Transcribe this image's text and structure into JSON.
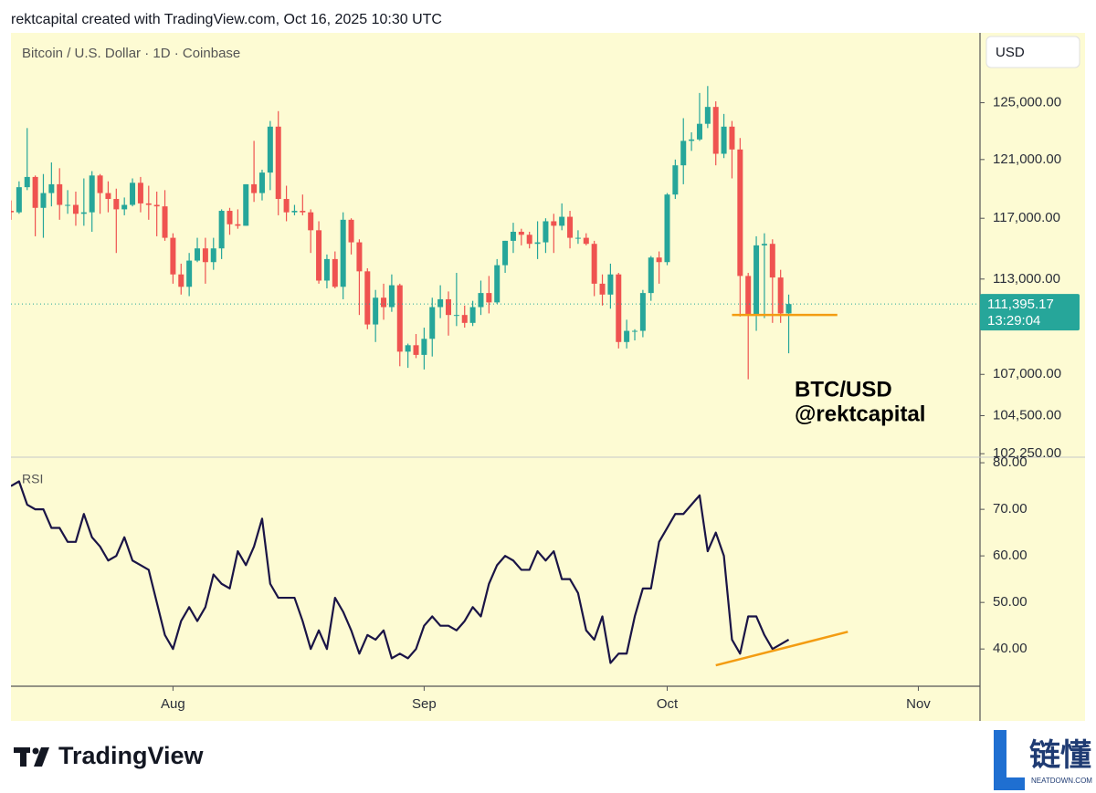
{
  "header": {
    "caption": "rektcapital created with TradingView.com, Oct 16, 2025 10:30 UTC"
  },
  "footer": {
    "logo": "TradingView",
    "watermark": "链懂",
    "watermark_sub": "NEATDOWN.COM"
  },
  "chart_data": [
    {
      "type": "candlestick",
      "title": "Bitcoin / U.S. Dollar · 1D · Coinbase",
      "currency": "USD",
      "x": [
        0,
        1,
        2,
        3,
        4,
        5,
        6,
        7,
        8,
        9,
        10,
        11,
        12,
        13,
        14,
        15,
        16,
        17,
        18,
        19,
        20,
        21,
        22,
        23,
        24,
        25,
        26,
        27,
        28,
        29,
        30,
        31,
        32,
        33,
        34,
        35,
        36,
        37,
        38,
        39,
        40,
        41,
        42,
        43,
        44,
        45,
        46,
        47,
        48,
        49,
        50,
        51,
        52,
        53,
        54,
        55,
        56,
        57,
        58,
        59,
        60,
        61,
        62,
        63,
        64,
        65,
        66,
        67,
        68,
        69,
        70,
        71,
        72,
        73,
        74,
        75,
        76,
        77,
        78,
        79,
        80,
        81,
        82,
        83,
        84,
        85,
        86,
        87,
        88,
        89,
        90,
        91,
        92,
        93,
        94,
        95,
        96
      ],
      "open": [
        117500,
        117400,
        119100,
        119800,
        117700,
        118700,
        119300,
        117900,
        117900,
        117300,
        117400,
        119900,
        118700,
        118300,
        117600,
        117900,
        119400,
        118000,
        117900,
        117800,
        115700,
        113300,
        112500,
        114200,
        115000,
        114100,
        115000,
        117500,
        116600,
        116500,
        119300,
        118700,
        120100,
        123300,
        118300,
        117400,
        117500,
        117400,
        116200,
        112900,
        114300,
        112500,
        116900,
        115400,
        113500,
        110100,
        111800,
        111200,
        112600,
        108400,
        108800,
        108200,
        109200,
        111200,
        111700,
        110700,
        110700,
        110200,
        111200,
        112100,
        111500,
        113900,
        115500,
        116100,
        115900,
        115300,
        115400,
        116800,
        116500,
        117100,
        115700,
        115700,
        115300,
        112700,
        112000,
        113300,
        109000,
        109700,
        109700,
        112100,
        114400,
        114100,
        118600,
        120600,
        122300,
        122400,
        123500,
        124700,
        121400,
        123300,
        121700,
        113200,
        110700,
        115200,
        115300,
        113100,
        110800
      ],
      "high": [
        118200,
        119500,
        123200,
        119900,
        120000,
        120800,
        120400,
        118900,
        118800,
        119700,
        120200,
        120000,
        119500,
        119000,
        118400,
        119700,
        119800,
        119200,
        118800,
        118900,
        116000,
        114000,
        114700,
        115700,
        115700,
        115700,
        117600,
        117700,
        117600,
        119300,
        122300,
        120300,
        123700,
        124400,
        119200,
        117900,
        118600,
        117600,
        116800,
        114600,
        114800,
        117400,
        117000,
        115600,
        113700,
        112300,
        112700,
        113300,
        112700,
        108900,
        109500,
        109900,
        111800,
        112600,
        112200,
        113400,
        111300,
        111600,
        112900,
        113200,
        114300,
        115500,
        116700,
        116300,
        116100,
        116800,
        117000,
        117300,
        118000,
        117500,
        116200,
        116000,
        115500,
        113300,
        114000,
        113400,
        110400,
        109800,
        112300,
        114500,
        114800,
        118700,
        121000,
        123900,
        122900,
        125700,
        126200,
        125100,
        124200,
        123700,
        122500,
        113400,
        115800,
        116000,
        115600,
        113600,
        112000
      ],
      "low": [
        116900,
        117300,
        118900,
        115800,
        115700,
        117800,
        116900,
        117300,
        116500,
        116500,
        116100,
        117300,
        117400,
        114700,
        117200,
        117800,
        117400,
        116900,
        115800,
        115500,
        112700,
        112000,
        111900,
        114100,
        112700,
        113600,
        114300,
        115900,
        116300,
        116500,
        118100,
        118200,
        118900,
        117200,
        116800,
        117200,
        117200,
        114700,
        112700,
        112400,
        112400,
        111700,
        114600,
        110700,
        109800,
        109000,
        110400,
        110900,
        107500,
        107400,
        108000,
        107300,
        108100,
        110500,
        109400,
        110000,
        109900,
        110000,
        110700,
        110800,
        111400,
        113400,
        114700,
        115200,
        115000,
        114300,
        114700,
        114700,
        116200,
        115000,
        115300,
        115200,
        111900,
        111300,
        111100,
        108600,
        108600,
        109100,
        109300,
        111600,
        112700,
        113900,
        118300,
        119300,
        121600,
        122300,
        123200,
        120600,
        121100,
        119700,
        110600,
        106700,
        109700,
        110500,
        110200,
        110200,
        108300
      ],
      "close": [
        117400,
        119100,
        119800,
        117700,
        118700,
        119300,
        117900,
        117900,
        117300,
        117400,
        119900,
        118700,
        118300,
        117600,
        117900,
        119400,
        118000,
        117900,
        117800,
        115700,
        113300,
        112500,
        114200,
        115000,
        114100,
        115000,
        117500,
        116600,
        116500,
        119300,
        118700,
        120100,
        123300,
        118300,
        117400,
        117500,
        117400,
        116200,
        112900,
        114300,
        112500,
        116900,
        115400,
        113500,
        110100,
        111800,
        111200,
        112600,
        108400,
        108800,
        108200,
        109200,
        111200,
        111700,
        110700,
        110700,
        110200,
        111200,
        112100,
        111500,
        113900,
        115500,
        116100,
        115900,
        115300,
        115400,
        116800,
        116500,
        117100,
        115700,
        115700,
        115300,
        112700,
        112000,
        113300,
        109000,
        109700,
        109700,
        112100,
        114400,
        114100,
        118600,
        120600,
        122300,
        122400,
        123500,
        124700,
        121400,
        123300,
        121700,
        113200,
        110700,
        115200,
        115300,
        113100,
        110800,
        111395.17
      ],
      "up_color": "#26a69a",
      "down_color": "#ef5350",
      "xlim": [
        0,
        119.5
      ],
      "ylim": [
        102100,
        130100
      ],
      "log_scale": true,
      "grid": false,
      "yticks": [
        {
          "value": 102250,
          "label": "102,250.00"
        },
        {
          "value": 104500,
          "label": "104,500.00"
        },
        {
          "value": 107000,
          "label": "107,000.00"
        },
        {
          "value": 113000,
          "label": "113,000.00"
        },
        {
          "value": 117000,
          "label": "117,000.00"
        },
        {
          "value": 121000,
          "label": "121,000.00"
        },
        {
          "value": 125000,
          "label": "125,000.00"
        }
      ],
      "last_price": {
        "value": 111395.17,
        "label": "111,395.17"
      },
      "countdown": "13:29:04",
      "support_line": {
        "x": [
          89,
          102
        ],
        "y": [
          110700,
          110700
        ],
        "color": "#f39c12"
      },
      "annotations": [
        "BTC/USD",
        "@rektcapital"
      ]
    },
    {
      "type": "line",
      "title": "RSI",
      "x": [
        0,
        1,
        2,
        3,
        4,
        5,
        6,
        7,
        8,
        9,
        10,
        11,
        12,
        13,
        14,
        15,
        16,
        17,
        18,
        19,
        20,
        21,
        22,
        23,
        24,
        25,
        26,
        27,
        28,
        29,
        30,
        31,
        32,
        33,
        34,
        35,
        36,
        37,
        38,
        39,
        40,
        41,
        42,
        43,
        44,
        45,
        46,
        47,
        48,
        49,
        50,
        51,
        52,
        53,
        54,
        55,
        56,
        57,
        58,
        59,
        60,
        61,
        62,
        63,
        64,
        65,
        66,
        67,
        68,
        69,
        70,
        71,
        72,
        73,
        74,
        75,
        76,
        77,
        78,
        79,
        80,
        81,
        82,
        83,
        84,
        85,
        86,
        87,
        88,
        89,
        90,
        91,
        92,
        93,
        94,
        95,
        96
      ],
      "series": [
        {
          "color": "#1a1446",
          "values": [
            75,
            76,
            71,
            70,
            70,
            66,
            66,
            63,
            63,
            69,
            64,
            62,
            59,
            60,
            64,
            59,
            58,
            57,
            50,
            43,
            40,
            46,
            49,
            46,
            49,
            56,
            54,
            53,
            61,
            58,
            62,
            68,
            54,
            51,
            51,
            51,
            46,
            40,
            44,
            40,
            51,
            48,
            44,
            39,
            43,
            42,
            44,
            38,
            39,
            38,
            40,
            45,
            47,
            45,
            45,
            44,
            46,
            49,
            47,
            54,
            58,
            60,
            59,
            57,
            57,
            61,
            59,
            61,
            55,
            55,
            52,
            44,
            42,
            47,
            37,
            39,
            39,
            47,
            53,
            53,
            63,
            66,
            69,
            69,
            71,
            73,
            61,
            65,
            60,
            42,
            39,
            47,
            47,
            43,
            40,
            41,
            42
          ]
        }
      ],
      "xlim": [
        0,
        119.5
      ],
      "ylim": [
        32,
        81
      ],
      "grid": false,
      "yticks": [
        {
          "value": 40,
          "label": "40.00"
        },
        {
          "value": 50,
          "label": "50.00"
        },
        {
          "value": 60,
          "label": "60.00"
        },
        {
          "value": 70,
          "label": "70.00"
        },
        {
          "value": 80,
          "label": "80.00"
        }
      ],
      "xticks": [
        {
          "value": 20,
          "label": "Aug"
        },
        {
          "value": 51,
          "label": "Sep"
        },
        {
          "value": 81,
          "label": "Oct"
        },
        {
          "value": 112,
          "label": "Nov"
        }
      ],
      "trend_line": {
        "x": [
          87,
          103.3
        ],
        "y": [
          36.5,
          43.7
        ],
        "color": "#f39c12"
      }
    }
  ]
}
